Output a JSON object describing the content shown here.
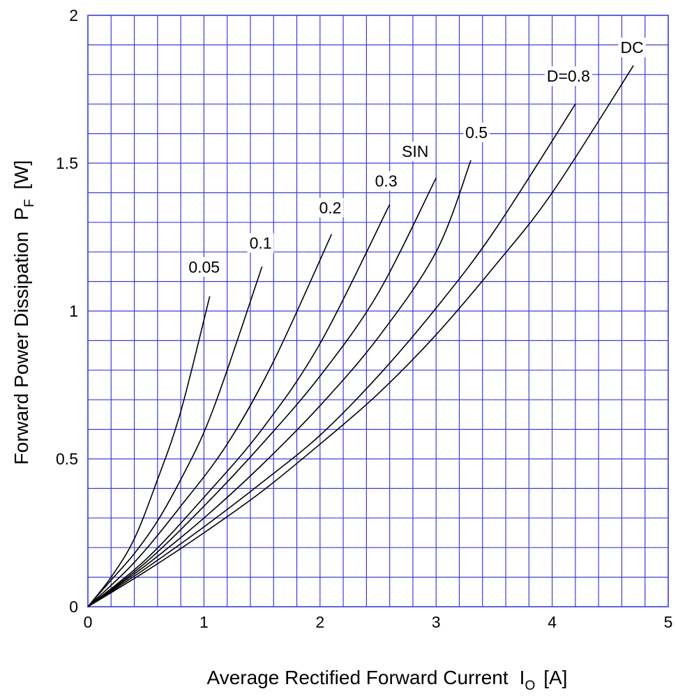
{
  "chart_data": {
    "type": "line",
    "xlabel": "Average Rectified Forward Current",
    "xlabel_symbol": "I",
    "xlabel_sub": "O",
    "xlabel_unit": "[A]",
    "ylabel": "Forward Power Dissipation",
    "ylabel_symbol": "P",
    "ylabel_sub": "F",
    "ylabel_unit": "[W]",
    "xlim": [
      0,
      5
    ],
    "ylim": [
      0,
      2
    ],
    "x_ticks": [
      "0",
      "1",
      "2",
      "3",
      "4",
      "5"
    ],
    "y_ticks": [
      "0",
      "0.5",
      "1",
      "1.5",
      "2"
    ],
    "x_minor_step": 0.2,
    "y_minor_step": 0.1,
    "grid": true,
    "grid_color": "#3b3bdc",
    "line_color": "#000000",
    "series": [
      {
        "name": "0.05",
        "x": [
          0,
          0.2,
          0.4,
          0.6,
          0.8,
          1.05
        ],
        "y": [
          0,
          0.1,
          0.23,
          0.43,
          0.66,
          1.05
        ]
      },
      {
        "name": "0.1",
        "x": [
          0,
          0.2,
          0.4,
          0.6,
          0.8,
          1.0,
          1.2,
          1.5
        ],
        "y": [
          0,
          0.09,
          0.18,
          0.29,
          0.43,
          0.59,
          0.8,
          1.15
        ]
      },
      {
        "name": "0.2",
        "x": [
          0,
          0.4,
          0.8,
          1.2,
          1.6,
          2.1
        ],
        "y": [
          0,
          0.15,
          0.34,
          0.55,
          0.83,
          1.26
        ]
      },
      {
        "name": "0.3",
        "x": [
          0,
          0.5,
          1.0,
          1.5,
          2.0,
          2.6
        ],
        "y": [
          0,
          0.16,
          0.37,
          0.6,
          0.89,
          1.36
        ]
      },
      {
        "name": "SIN",
        "x": [
          0,
          0.5,
          1.0,
          1.5,
          2.0,
          2.5,
          3.0
        ],
        "y": [
          0,
          0.15,
          0.34,
          0.55,
          0.78,
          1.06,
          1.45
        ]
      },
      {
        "name": "0.5",
        "x": [
          0,
          0.5,
          1.0,
          1.5,
          2.0,
          2.5,
          3.0,
          3.3
        ],
        "y": [
          0,
          0.14,
          0.3,
          0.48,
          0.68,
          0.91,
          1.2,
          1.51
        ]
      },
      {
        "name": "D=0.8",
        "x": [
          0,
          0.5,
          1.0,
          1.5,
          2.0,
          2.5,
          3.0,
          3.5,
          4.2
        ],
        "y": [
          0,
          0.13,
          0.27,
          0.42,
          0.58,
          0.78,
          1.01,
          1.27,
          1.7
        ]
      },
      {
        "name": "DC",
        "x": [
          0,
          0.5,
          1.0,
          1.5,
          2.0,
          2.5,
          3.0,
          3.5,
          4.0,
          4.7
        ],
        "y": [
          0,
          0.12,
          0.25,
          0.39,
          0.55,
          0.72,
          0.92,
          1.15,
          1.4,
          1.83
        ]
      }
    ]
  }
}
